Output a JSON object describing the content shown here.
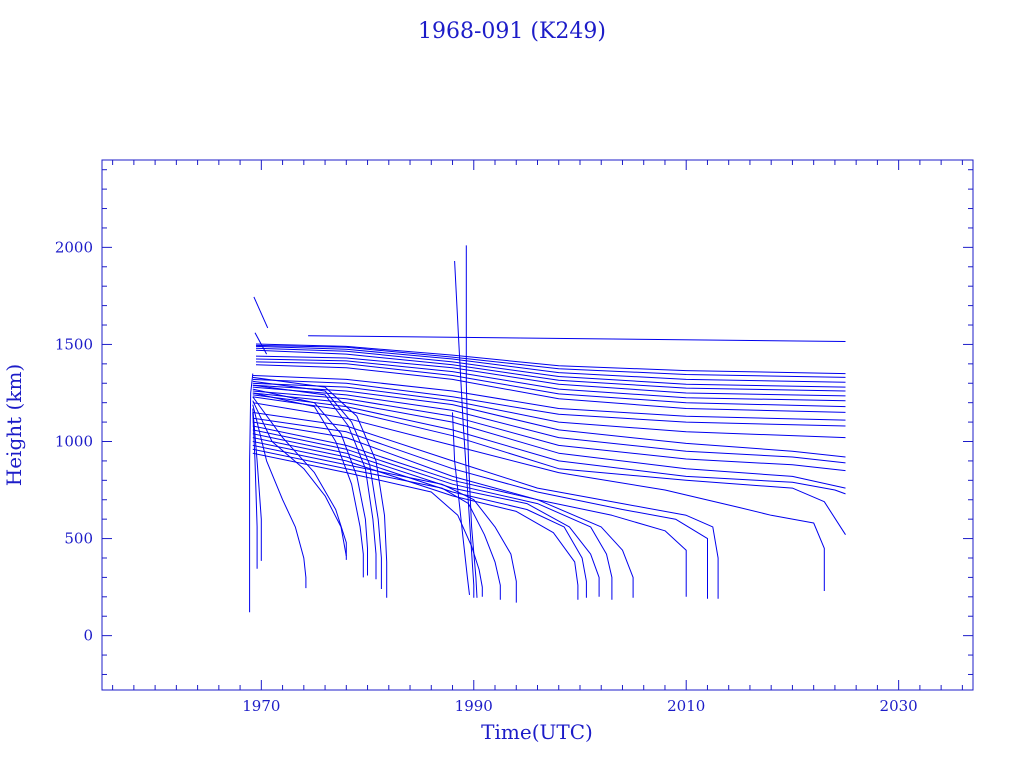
{
  "colors": {
    "ink": "#1c1cc8",
    "series": "#0000ee",
    "background": "#ffffff"
  },
  "chart_data": {
    "type": "line",
    "title": "1968-091 (K249)",
    "xlabel": "Time(UTC)",
    "ylabel": "Height (km)",
    "xlim": [
      1955,
      2037
    ],
    "ylim": [
      -280,
      2450
    ],
    "xticks": [
      1970,
      1990,
      2010,
      2030
    ],
    "xtick_labels": [
      "1970",
      "1990",
      "2010",
      "2030"
    ],
    "yticks": [
      0,
      500,
      1000,
      1500,
      2000
    ],
    "ytick_labels": [
      "0",
      "500",
      "1000",
      "1500",
      "2000"
    ],
    "x_minor_step": 2,
    "y_minor_step": 100,
    "grid": false,
    "legend": "none",
    "series": [
      {
        "x": [
          1974.4,
          2025.0
        ],
        "y": [
          1545,
          1515
        ]
      },
      {
        "x": [
          1969.5,
          1978.0,
          1988.0,
          1998.0,
          2010.0,
          2025.0
        ],
        "y": [
          1502,
          1490,
          1445,
          1390,
          1365,
          1350
        ]
      },
      {
        "x": [
          1969.5,
          1978.0,
          1988.0,
          1998.0,
          2010.0,
          2025.0
        ],
        "y": [
          1495,
          1485,
          1435,
          1375,
          1345,
          1330
        ]
      },
      {
        "x": [
          1969.5,
          1978.0,
          1988.0,
          1998.0,
          2010.0,
          2025.0
        ],
        "y": [
          1490,
          1475,
          1425,
          1355,
          1320,
          1305
        ]
      },
      {
        "x": [
          1969.5,
          1978.0,
          1988.0,
          1998.0,
          2010.0,
          2025.0
        ],
        "y": [
          1480,
          1465,
          1410,
          1335,
          1295,
          1280
        ]
      },
      {
        "x": [
          1969.5,
          1978.0,
          1988.0,
          1998.0,
          2010.0,
          2025.0
        ],
        "y": [
          1470,
          1450,
          1395,
          1315,
          1275,
          1260
        ]
      },
      {
        "x": [
          1969.5,
          1978.0,
          1988.0,
          1998.0,
          2010.0,
          2025.0
        ],
        "y": [
          1440,
          1430,
          1380,
          1295,
          1250,
          1235
        ]
      },
      {
        "x": [
          1969.5,
          1978.0,
          1988.0,
          1998.0,
          2010.0,
          2025.0
        ],
        "y": [
          1425,
          1415,
          1360,
          1270,
          1225,
          1210
        ]
      },
      {
        "x": [
          1969.5,
          1978.0,
          1988.0,
          1998.0,
          2010.0,
          2025.0
        ],
        "y": [
          1410,
          1400,
          1340,
          1245,
          1200,
          1180
        ]
      },
      {
        "x": [
          1969.5,
          1978.0,
          1988.0,
          1998.0,
          2010.0,
          2025.0
        ],
        "y": [
          1395,
          1380,
          1320,
          1220,
          1170,
          1150
        ]
      },
      {
        "x": [
          1969.2,
          1978.0,
          1988.0,
          1998.0,
          2010.0,
          2025.0
        ],
        "y": [
          1340,
          1320,
          1260,
          1170,
          1130,
          1110
        ]
      },
      {
        "x": [
          1969.2,
          1978.0,
          1988.0,
          1998.0,
          2010.0,
          2025.0
        ],
        "y": [
          1320,
          1300,
          1230,
          1140,
          1100,
          1080
        ]
      },
      {
        "x": [
          1969.2,
          1978.0,
          1988.0,
          1998.0,
          2010.0,
          2025.0
        ],
        "y": [
          1300,
          1280,
          1210,
          1100,
          1050,
          1020
        ]
      },
      {
        "x": [
          1969.2,
          1978.0,
          1988.0,
          1998.0,
          2010.0,
          2020.0,
          2025.0
        ],
        "y": [
          1290,
          1260,
          1190,
          1060,
          990,
          950,
          920
        ]
      },
      {
        "x": [
          1969.2,
          1978.0,
          1988.0,
          1998.0,
          2010.0,
          2020.0,
          2025.0
        ],
        "y": [
          1280,
          1240,
          1160,
          1020,
          950,
          920,
          890
        ]
      },
      {
        "x": [
          1969.2,
          1978.0,
          1988.0,
          1998.0,
          2010.0,
          2020.0,
          2025.0
        ],
        "y": [
          1260,
          1220,
          1130,
          980,
          910,
          880,
          850
        ]
      },
      {
        "x": [
          1969.2,
          1978.0,
          1988.0,
          1998.0,
          2010.0,
          2020.0,
          2025.0
        ],
        "y": [
          1250,
          1200,
          1100,
          940,
          860,
          820,
          760
        ]
      },
      {
        "x": [
          1969.2,
          1978.0,
          1988.0,
          1998.0,
          2010.0,
          2020.0,
          2024.0,
          2025.0
        ],
        "y": [
          1240,
          1180,
          1060,
          900,
          820,
          790,
          750,
          730
        ]
      },
      {
        "x": [
          1969.2,
          1978.0,
          1988.0,
          1998.0,
          2010.0,
          2020.0,
          2023.0,
          2025.0
        ],
        "y": [
          1230,
          1160,
          1030,
          860,
          800,
          760,
          690,
          520
        ]
      },
      {
        "x": [
          1969.2,
          1978.0,
          1988.0,
          1998.0,
          2008.0,
          2015.0,
          2018.0,
          2022.0,
          2023.0,
          2023.0
        ],
        "y": [
          1200,
          1120,
          980,
          840,
          750,
          660,
          620,
          580,
          450,
          230
        ]
      },
      {
        "x": [
          1969.2,
          1978.0,
          1988.0,
          1996.0,
          2004.0,
          2010.0,
          2012.5,
          2013.0,
          2013.0
        ],
        "y": [
          1150,
          1080,
          900,
          760,
          680,
          620,
          560,
          400,
          190
        ]
      },
      {
        "x": [
          1969.2,
          1978.0,
          1988.0,
          1996.0,
          2004.0,
          2009.0,
          2012.0,
          2012.0
        ],
        "y": [
          1120,
          1050,
          860,
          740,
          650,
          600,
          500,
          190
        ]
      },
      {
        "x": [
          1969.2,
          1978.0,
          1988.0,
          1996.0,
          2003.0,
          2008.0,
          2010.0,
          2010.0
        ],
        "y": [
          1100,
          1020,
          820,
          700,
          620,
          540,
          440,
          200
        ]
      },
      {
        "x": [
          1969.2,
          1978.0,
          1988.0,
          1996.0,
          2002.0,
          2004.0,
          2005.0,
          2005.0
        ],
        "y": [
          1080,
          980,
          800,
          700,
          560,
          440,
          300,
          195
        ]
      },
      {
        "x": [
          1969.2,
          1978.0,
          1988.0,
          1996.0,
          2001.0,
          2002.5,
          2003.0,
          2003.0
        ],
        "y": [
          1060,
          960,
          780,
          680,
          560,
          420,
          300,
          185
        ]
      },
      {
        "x": [
          1969.2,
          1978.0,
          1988.0,
          1995.0,
          1999.0,
          2001.0,
          2001.8,
          2001.8
        ],
        "y": [
          1040,
          940,
          760,
          680,
          560,
          420,
          300,
          200
        ]
      },
      {
        "x": [
          1969.2,
          1978.0,
          1988.0,
          1995.0,
          1998.5,
          2000.2,
          2000.6,
          2000.6
        ],
        "y": [
          1020,
          920,
          740,
          650,
          560,
          400,
          280,
          195
        ]
      },
      {
        "x": [
          1969.2,
          1978.0,
          1988.0,
          1994.0,
          1997.5,
          1999.5,
          1999.8,
          1999.8
        ],
        "y": [
          1000,
          900,
          720,
          640,
          530,
          380,
          260,
          185
        ]
      },
      {
        "x": [
          1969.2,
          1978.0,
          1987.0,
          1990.0,
          1992.0,
          1993.5,
          1994.0,
          1994.0
        ],
        "y": [
          980,
          880,
          780,
          700,
          560,
          420,
          280,
          170
        ]
      },
      {
        "x": [
          1969.2,
          1978.0,
          1987.0,
          1989.5,
          1991.0,
          1992.0,
          1992.5,
          1992.5
        ],
        "y": [
          960,
          860,
          760,
          680,
          520,
          380,
          260,
          185
        ]
      },
      {
        "x": [
          1969.2,
          1978.0,
          1986.0,
          1988.5,
          1989.8,
          1990.5,
          1990.8,
          1990.8
        ],
        "y": [
          940,
          840,
          740,
          620,
          460,
          340,
          250,
          200
        ]
      },
      {
        "x": [
          1988.2,
          1988.6,
          1989.0,
          1989.4,
          1989.8,
          1990.0,
          1990.0
        ],
        "y": [
          1930,
          1500,
          1100,
          760,
          430,
          260,
          195
        ]
      },
      {
        "x": [
          1989.3,
          1989.3,
          1989.5,
          1989.8,
          1990.2,
          1990.3
        ],
        "y": [
          2010,
          1300,
          900,
          560,
          300,
          195
        ]
      },
      {
        "x": [
          1988.0,
          1988.2,
          1988.6,
          1989.0,
          1989.4,
          1989.6
        ],
        "y": [
          1150,
          900,
          700,
          500,
          300,
          210
        ]
      },
      {
        "x": [
          1969.2,
          1976.0,
          1979.0,
          1980.8,
          1981.6,
          1981.8,
          1981.8
        ],
        "y": [
          1330,
          1280,
          1130,
          900,
          620,
          380,
          195
        ]
      },
      {
        "x": [
          1969.2,
          1976.0,
          1978.5,
          1980.2,
          1981.0,
          1981.3,
          1981.3
        ],
        "y": [
          1310,
          1260,
          1100,
          880,
          600,
          400,
          240
        ]
      },
      {
        "x": [
          1969.2,
          1976.0,
          1978.2,
          1979.8,
          1980.5,
          1980.8,
          1980.8
        ],
        "y": [
          1290,
          1240,
          1080,
          860,
          600,
          420,
          290
        ]
      },
      {
        "x": [
          1969.2,
          1975.0,
          1977.5,
          1979.0,
          1979.8,
          1980.0,
          1980.0
        ],
        "y": [
          1270,
          1200,
          1040,
          820,
          600,
          450,
          310
        ]
      },
      {
        "x": [
          1969.2,
          1975.0,
          1977.0,
          1978.5,
          1979.3,
          1979.6,
          1979.6
        ],
        "y": [
          1250,
          1180,
          1000,
          780,
          560,
          420,
          300
        ]
      },
      {
        "x": [
          1969.2,
          1972.0,
          1975.0,
          1977.0,
          1978.0,
          1978.0
        ],
        "y": [
          1230,
          1020,
          840,
          650,
          480,
          390
        ]
      },
      {
        "x": [
          1969.2,
          1971.0,
          1974.0,
          1976.0,
          1977.5,
          1978.0
        ],
        "y": [
          1210,
          1000,
          860,
          720,
          560,
          410
        ]
      },
      {
        "x": [
          1969.2,
          1970.5,
          1972.0,
          1973.2,
          1974.0,
          1974.2,
          1974.2
        ],
        "y": [
          1190,
          900,
          700,
          560,
          400,
          300,
          245
        ]
      },
      {
        "x": [
          1969.2,
          1969.6,
          1970.0,
          1970.0
        ],
        "y": [
          1170,
          900,
          600,
          385
        ]
      },
      {
        "x": [
          1969.2,
          1969.4,
          1969.6,
          1969.6
        ],
        "y": [
          1150,
          900,
          560,
          345
        ]
      },
      {
        "x": [
          1968.9,
          1968.9,
          1969.0,
          1969.2
        ],
        "y": [
          120,
          900,
          1250,
          1350
        ]
      },
      {
        "x": [
          1969.3,
          1970.6
        ],
        "y": [
          1745,
          1585
        ]
      },
      {
        "x": [
          1969.4,
          1970.5
        ],
        "y": [
          1560,
          1450
        ]
      }
    ]
  }
}
